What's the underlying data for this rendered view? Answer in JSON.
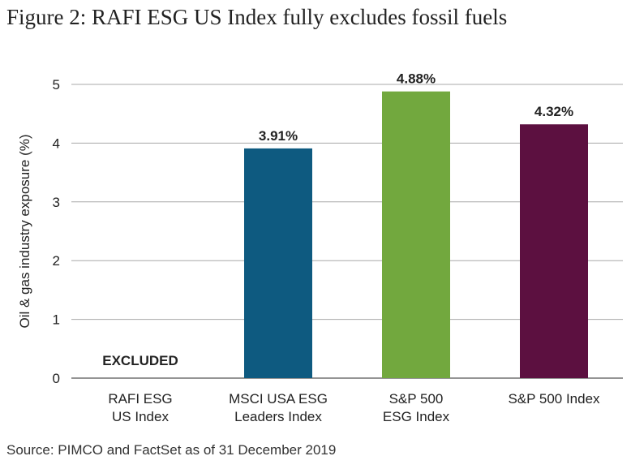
{
  "header": {
    "title": "Figure 2: RAFI ESG US Index fully excludes fossil fuels"
  },
  "footer": {
    "source": "Source: PIMCO and FactSet as of 31 December 2019"
  },
  "chart_data": {
    "type": "bar",
    "title": "Figure 2: RAFI ESG US Index fully excludes fossil fuels",
    "xlabel": "",
    "ylabel": "Oil & gas industry exposure (%)",
    "ylim": [
      0,
      5
    ],
    "yticks": [
      0,
      1,
      2,
      3,
      4,
      5
    ],
    "grid": true,
    "categories": [
      [
        "RAFI ESG",
        "US Index"
      ],
      [
        "MSCI USA ESG",
        "Leaders Index"
      ],
      [
        "S&P 500",
        "ESG Index"
      ],
      [
        "S&P 500 Index"
      ]
    ],
    "values": [
      null,
      3.91,
      4.88,
      4.32
    ],
    "data_labels": [
      "EXCLUDED",
      "3.91%",
      "4.88%",
      "4.32%"
    ],
    "colors": [
      "#ffffff",
      "#0e5a80",
      "#72a83e",
      "#5c1040"
    ]
  }
}
